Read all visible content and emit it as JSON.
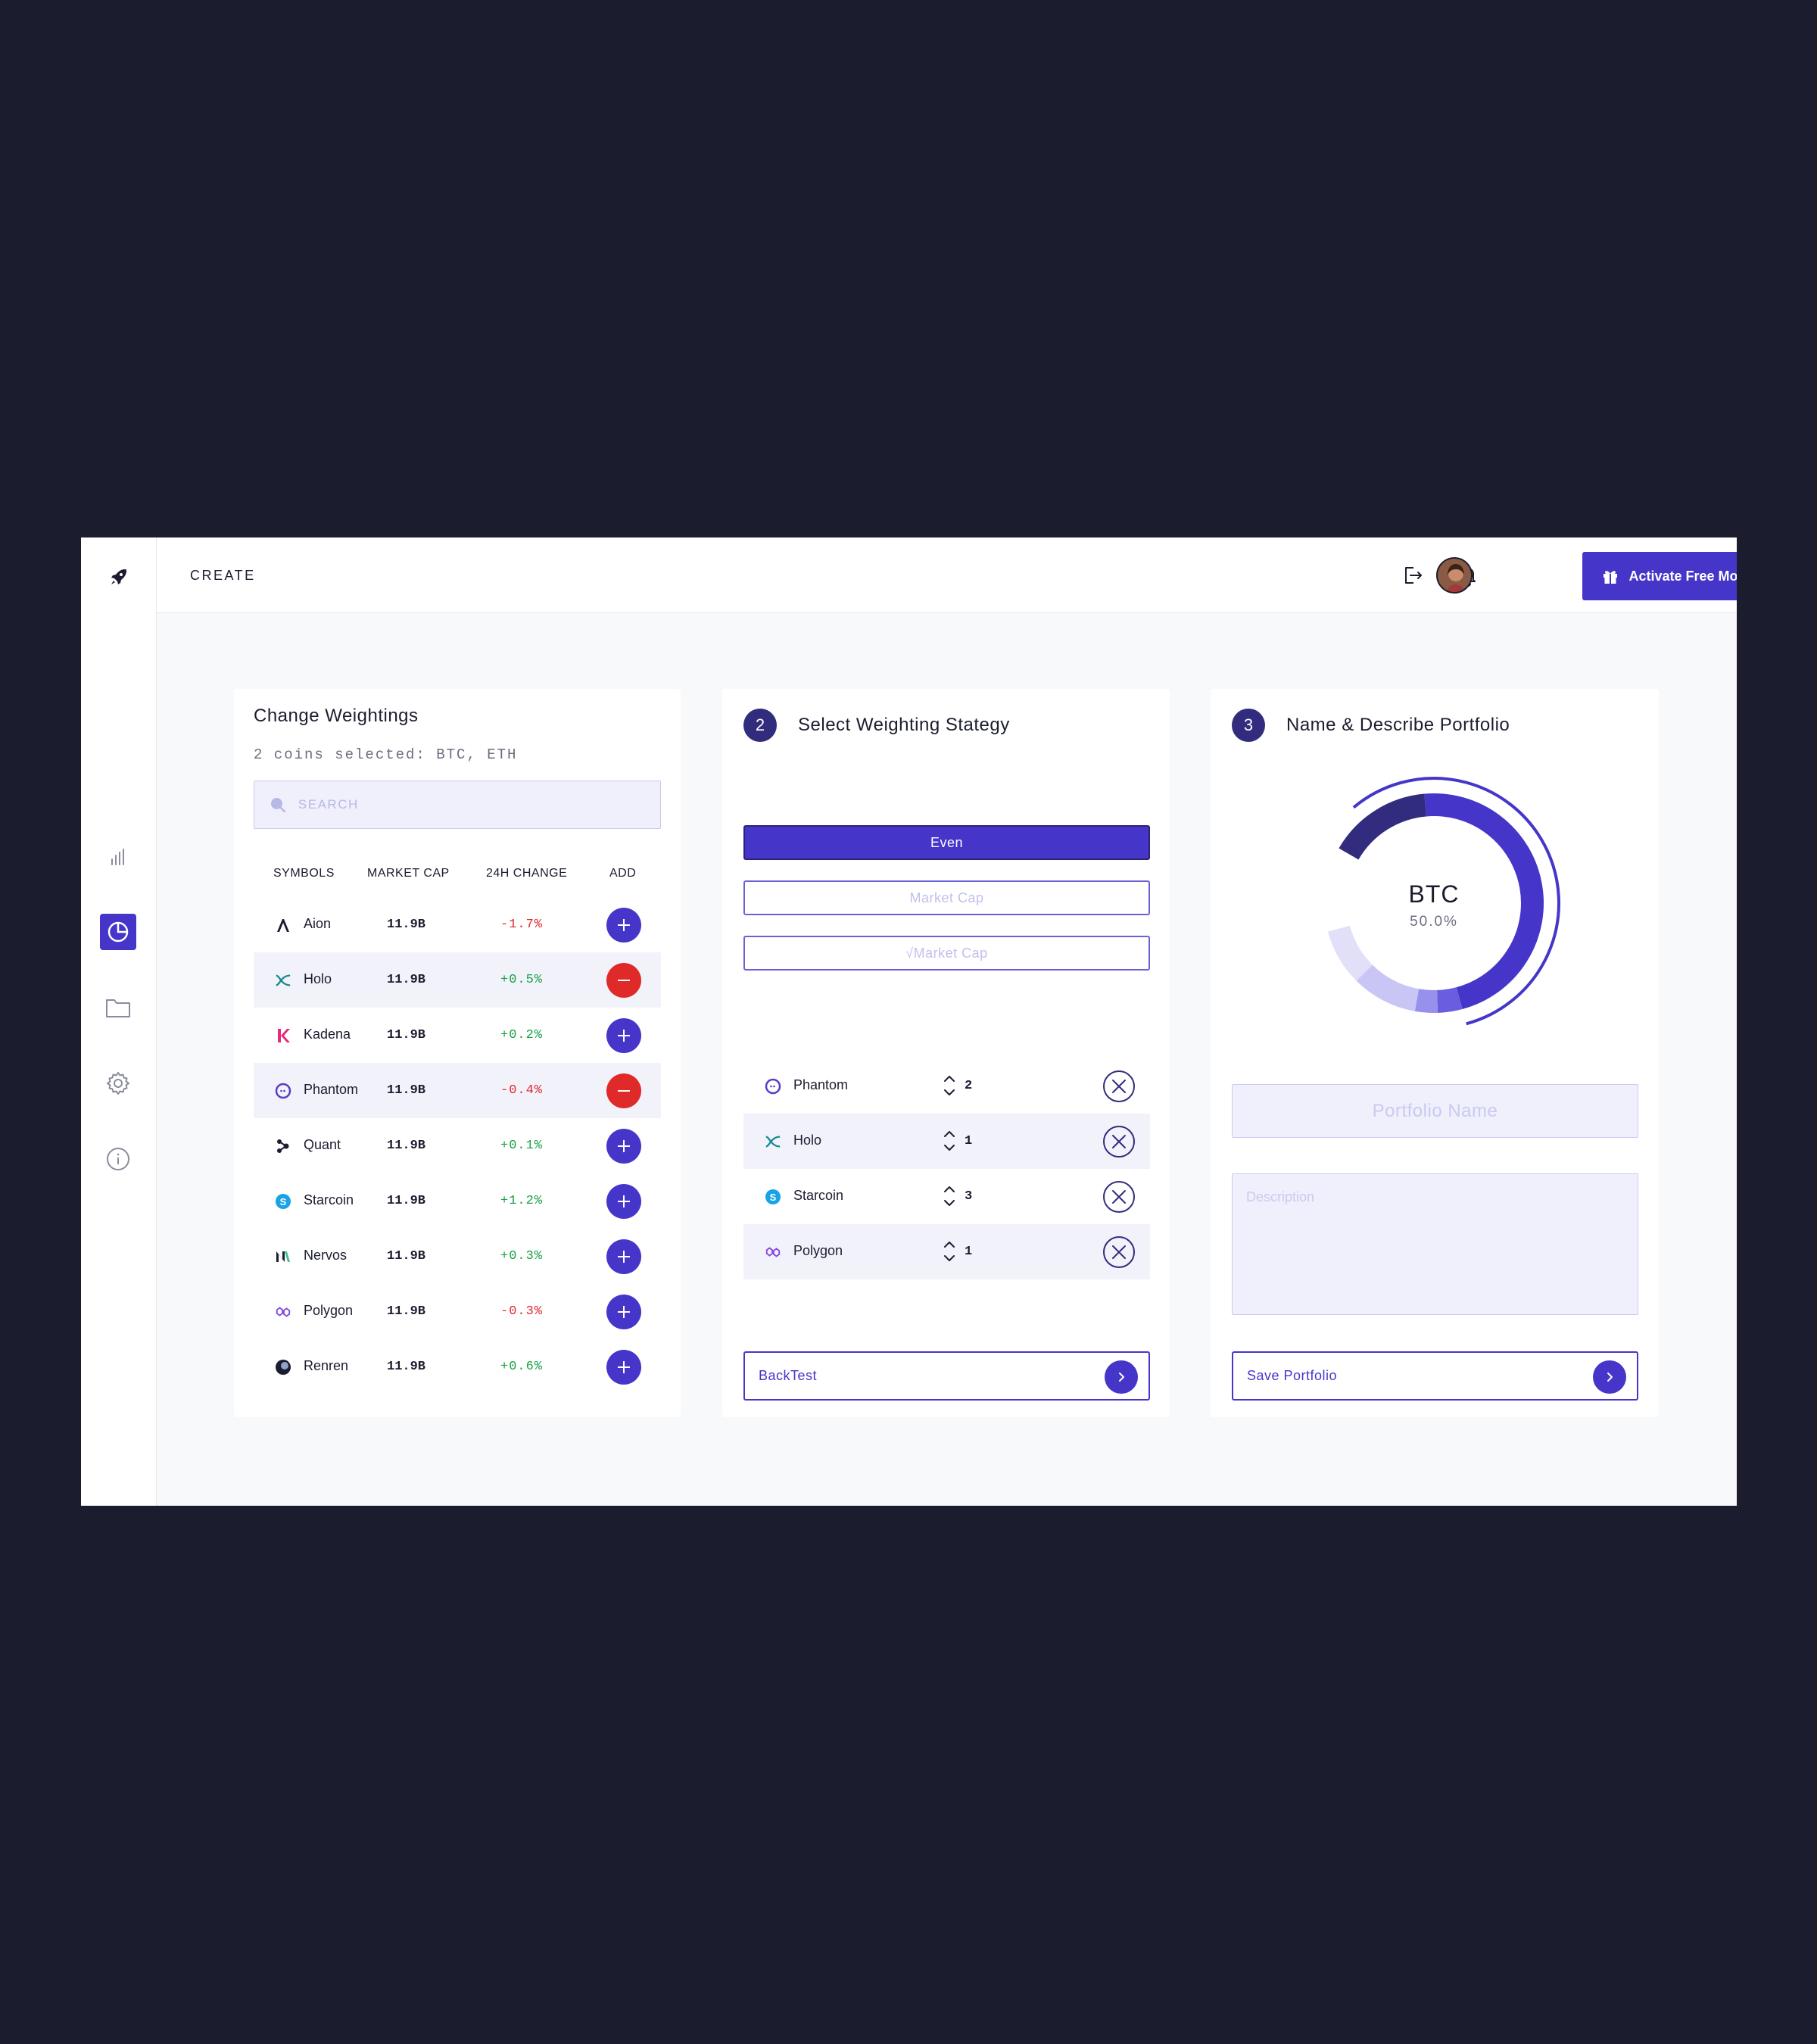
{
  "topbar": {
    "title": "CREATE",
    "activate_label": "Activate Free Month"
  },
  "colors": {
    "accent": "#4536c9",
    "accent_dark": "#312c7d",
    "negative": "#e0282e",
    "positive": "#1aa146",
    "background": "#1b1d2f"
  },
  "sidebar": {
    "items": [
      {
        "name": "chart-bars-icon",
        "active": false
      },
      {
        "name": "pie-chart-icon",
        "active": true
      },
      {
        "name": "folder-icon",
        "active": false
      },
      {
        "name": "gear-icon",
        "active": false
      },
      {
        "name": "info-icon",
        "active": false
      }
    ]
  },
  "weightings": {
    "title": "Change Weightings",
    "subtitle": "2 coins selected: BTC, ETH",
    "search_placeholder": "SEARCH",
    "columns": [
      "SYMBOLS",
      "MARKET CAP",
      "24H CHANGE",
      "ADD"
    ],
    "rows": [
      {
        "name": "Aion",
        "market_cap": "11.9B",
        "change": "-1.7%",
        "action": "add",
        "icon": "aion-icon"
      },
      {
        "name": "Holo",
        "market_cap": "11.9B",
        "change": "+0.5%",
        "action": "remove",
        "icon": "holo-icon"
      },
      {
        "name": "Kadena",
        "market_cap": "11.9B",
        "change": "+0.2%",
        "action": "add",
        "icon": "kadena-icon"
      },
      {
        "name": "Phantom",
        "market_cap": "11.9B",
        "change": "-0.4%",
        "action": "remove",
        "icon": "phantom-icon"
      },
      {
        "name": "Quant",
        "market_cap": "11.9B",
        "change": "+0.1%",
        "action": "add",
        "icon": "quant-icon"
      },
      {
        "name": "Starcoin",
        "market_cap": "11.9B",
        "change": "+1.2%",
        "action": "add",
        "icon": "starcoin-icon"
      },
      {
        "name": "Nervos",
        "market_cap": "11.9B",
        "change": "+0.3%",
        "action": "add",
        "icon": "nervos-icon"
      },
      {
        "name": "Polygon",
        "market_cap": "11.9B",
        "change": "-0.3%",
        "action": "add",
        "icon": "polygon-icon"
      },
      {
        "name": "Renren",
        "market_cap": "11.9B",
        "change": "+0.6%",
        "action": "add",
        "icon": "renren-icon"
      }
    ]
  },
  "strategy": {
    "step": "2",
    "title": "Select Weighting Stategy",
    "options": [
      "Even",
      "Market Cap",
      "√Market Cap"
    ],
    "selected": "Even",
    "coins": [
      {
        "name": "Phantom",
        "weight": "2",
        "icon": "phantom-icon"
      },
      {
        "name": "Holo",
        "weight": "1",
        "icon": "holo-icon"
      },
      {
        "name": "Starcoin",
        "weight": "3",
        "icon": "starcoin-icon"
      },
      {
        "name": "Polygon",
        "weight": "1",
        "icon": "polygon-icon"
      }
    ],
    "backtest_label": "BackTest"
  },
  "portfolio": {
    "step": "3",
    "title": "Name & Describe Portfolio",
    "donut_center_label": "BTC",
    "donut_center_value": "50.0%",
    "donut_share": 0.5,
    "name_placeholder": "Portfolio Name",
    "description_placeholder": "Description",
    "save_label": "Save Portfolio"
  }
}
